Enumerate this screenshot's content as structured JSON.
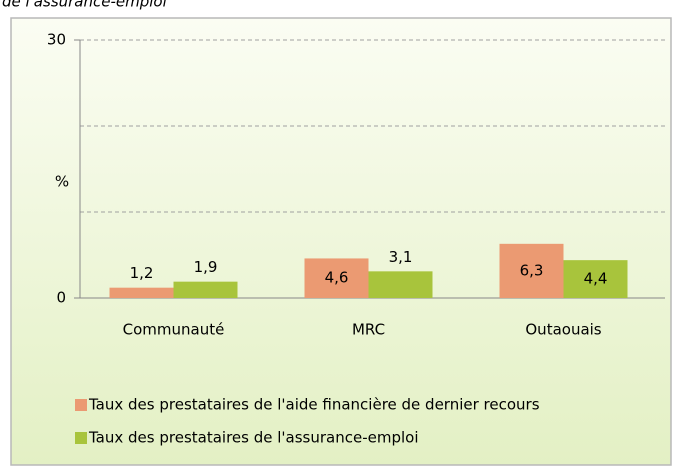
{
  "chart_data": {
    "type": "bar",
    "title": "de l'assurance-emploi",
    "ylabel": "%",
    "categories": [
      "Communauté",
      "MRC",
      "Outaouais"
    ],
    "series": [
      {
        "name": "Taux des prestataires de l'aide financière de dernier recours",
        "color": "#eb9a72",
        "values": [
          1.2,
          4.6,
          6.3
        ],
        "value_labels": [
          "1,2",
          "4,6",
          "6,3"
        ]
      },
      {
        "name": "Taux des prestataires de l'assurance-emploi",
        "color": "#a8c43c",
        "values": [
          1.9,
          3.1,
          4.4
        ],
        "value_labels": [
          "1,9",
          "3,1",
          "4,4"
        ]
      }
    ],
    "ylim": [
      0,
      30
    ],
    "yticks": [
      0,
      30
    ],
    "minor_grid": [
      10,
      20
    ],
    "grid": true,
    "legend": "bottom"
  }
}
